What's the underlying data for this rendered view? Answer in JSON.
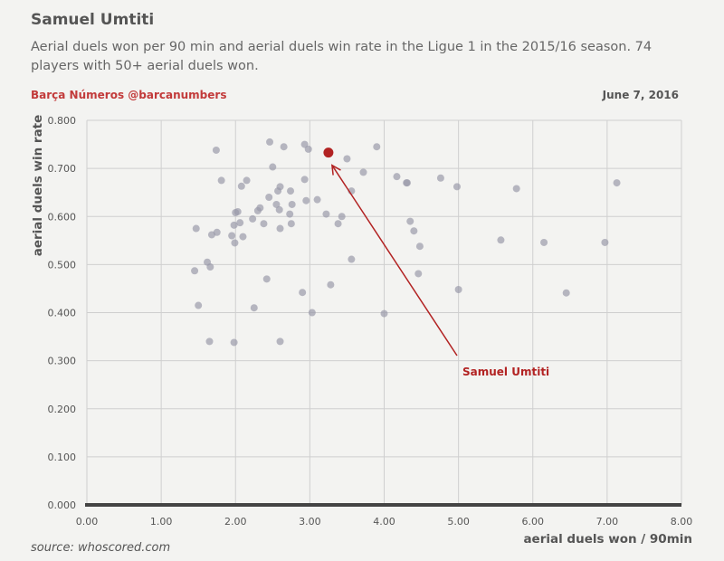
{
  "header": {
    "title": "Samuel Umtiti",
    "subtitle": "Aerial duels won per 90 min and aerial duels win rate in the Ligue 1 in the 2015/16 season. 74 players with 50+ aerial duels won.",
    "credit": "Barça Números @barcanumbers",
    "date": "June 7, 2016"
  },
  "footer": {
    "source": "source: whoscored.com"
  },
  "chart_data": {
    "type": "scatter",
    "xlabel": "aerial duels won / 90min",
    "ylabel": "aerial duels win rate",
    "xlim": [
      0,
      8
    ],
    "ylim": [
      0,
      0.8
    ],
    "x_ticks": [
      "0.00",
      "1.00",
      "2.00",
      "3.00",
      "4.00",
      "5.00",
      "6.00",
      "7.00",
      "8.00"
    ],
    "y_ticks": [
      "0.000",
      "0.100",
      "0.200",
      "0.300",
      "0.400",
      "0.500",
      "0.600",
      "0.700",
      "0.800"
    ],
    "grid": true,
    "colors": {
      "points": "#9a9aaa",
      "highlight": "#b22222"
    },
    "points": [
      [
        1.47,
        0.575
      ],
      [
        1.5,
        0.415
      ],
      [
        1.45,
        0.487
      ],
      [
        1.62,
        0.505
      ],
      [
        1.66,
        0.495
      ],
      [
        1.68,
        0.562
      ],
      [
        1.65,
        0.34
      ],
      [
        1.74,
        0.738
      ],
      [
        1.75,
        0.567
      ],
      [
        1.81,
        0.675
      ],
      [
        1.95,
        0.56
      ],
      [
        1.98,
        0.582
      ],
      [
        2.0,
        0.608
      ],
      [
        1.99,
        0.545
      ],
      [
        1.98,
        0.338
      ],
      [
        2.03,
        0.61
      ],
      [
        2.06,
        0.587
      ],
      [
        2.08,
        0.663
      ],
      [
        2.1,
        0.558
      ],
      [
        2.15,
        0.675
      ],
      [
        2.23,
        0.595
      ],
      [
        2.25,
        0.41
      ],
      [
        2.3,
        0.612
      ],
      [
        2.33,
        0.618
      ],
      [
        2.38,
        0.585
      ],
      [
        2.42,
        0.47
      ],
      [
        2.45,
        0.64
      ],
      [
        2.46,
        0.755
      ],
      [
        2.5,
        0.703
      ],
      [
        2.55,
        0.625
      ],
      [
        2.57,
        0.653
      ],
      [
        2.6,
        0.662
      ],
      [
        2.59,
        0.614
      ],
      [
        2.6,
        0.575
      ],
      [
        2.6,
        0.34
      ],
      [
        2.65,
        0.745
      ],
      [
        2.73,
        0.605
      ],
      [
        2.74,
        0.653
      ],
      [
        2.76,
        0.625
      ],
      [
        2.75,
        0.585
      ],
      [
        2.9,
        0.442
      ],
      [
        2.93,
        0.75
      ],
      [
        2.93,
        0.677
      ],
      [
        2.95,
        0.633
      ],
      [
        2.98,
        0.74
      ],
      [
        3.03,
        0.4
      ],
      [
        3.1,
        0.635
      ],
      [
        3.22,
        0.605
      ],
      [
        3.28,
        0.458
      ],
      [
        3.38,
        0.585
      ],
      [
        3.43,
        0.6
      ],
      [
        3.5,
        0.72
      ],
      [
        3.56,
        0.653
      ],
      [
        3.56,
        0.511
      ],
      [
        3.72,
        0.692
      ],
      [
        3.9,
        0.745
      ],
      [
        4.0,
        0.398
      ],
      [
        4.17,
        0.683
      ],
      [
        4.31,
        0.67
      ],
      [
        4.35,
        0.59
      ],
      [
        4.4,
        0.57
      ],
      [
        4.48,
        0.538
      ],
      [
        4.46,
        0.481
      ],
      [
        4.76,
        0.68
      ],
      [
        4.98,
        0.662
      ],
      [
        5.0,
        0.448
      ],
      [
        5.57,
        0.551
      ],
      [
        5.78,
        0.658
      ],
      [
        6.15,
        0.546
      ],
      [
        6.45,
        0.441
      ],
      [
        6.97,
        0.546
      ],
      [
        7.13,
        0.67
      ],
      [
        4.3,
        0.67
      ]
    ],
    "highlight": {
      "name": "Samuel Umtiti",
      "x": 3.25,
      "y": 0.733
    }
  }
}
